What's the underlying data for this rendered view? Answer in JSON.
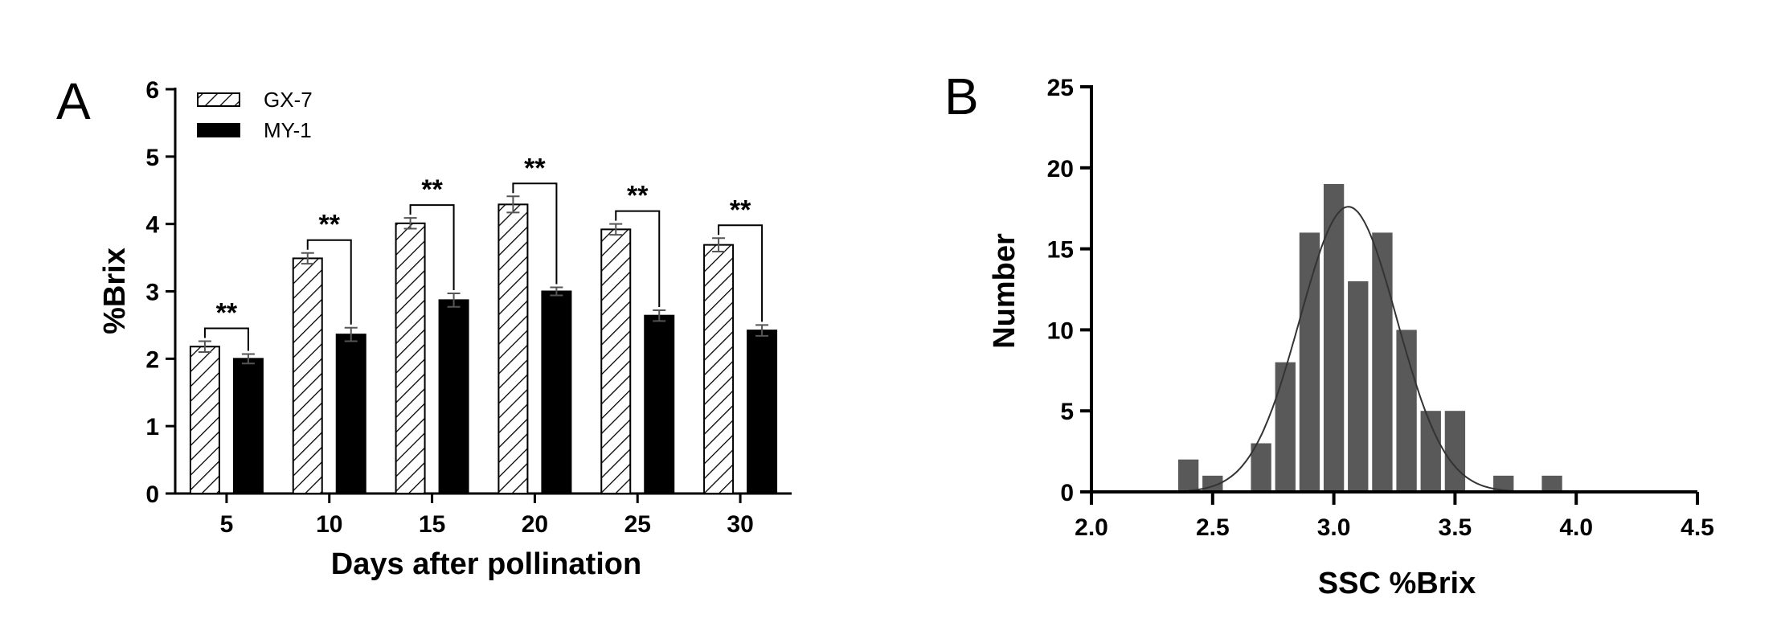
{
  "chart_data": [
    {
      "type": "bar",
      "panel_label": "A",
      "title": "",
      "xlabel": "Days after pollination",
      "ylabel": "%Brix",
      "categories": [
        "5",
        "10",
        "15",
        "20",
        "25",
        "30"
      ],
      "ylim": [
        0,
        6
      ],
      "yticks": [
        "0",
        "1",
        "2",
        "3",
        "4",
        "5",
        "6"
      ],
      "series": [
        {
          "name": "GX-7",
          "pattern": "hatched",
          "values": [
            2.18,
            3.49,
            4.01,
            4.29,
            3.92,
            3.69
          ],
          "errors": [
            0.08,
            0.08,
            0.08,
            0.12,
            0.08,
            0.1
          ]
        },
        {
          "name": "MY-1",
          "pattern": "solid",
          "color": "#000000",
          "values": [
            2.0,
            2.36,
            2.87,
            3.0,
            2.64,
            2.42
          ],
          "errors": [
            0.07,
            0.1,
            0.1,
            0.06,
            0.08,
            0.08
          ]
        }
      ],
      "significance": [
        "**",
        "**",
        "**",
        "**",
        "**",
        "**"
      ],
      "legend_position": "top-left",
      "grid": false
    },
    {
      "type": "bar",
      "subtype": "histogram",
      "panel_label": "B",
      "title": "",
      "xlabel": "SSC %Brix",
      "ylabel": "Number",
      "xlim": [
        2.0,
        4.5
      ],
      "ylim": [
        0,
        25
      ],
      "xticks": [
        "2.0",
        "2.5",
        "3.0",
        "3.5",
        "4.0",
        "4.5"
      ],
      "yticks": [
        "0",
        "5",
        "10",
        "15",
        "20",
        "25"
      ],
      "bin_width": 0.1,
      "bins": [
        {
          "x": 2.4,
          "count": 2
        },
        {
          "x": 2.5,
          "count": 1
        },
        {
          "x": 2.7,
          "count": 3
        },
        {
          "x": 2.8,
          "count": 8
        },
        {
          "x": 2.9,
          "count": 16
        },
        {
          "x": 3.0,
          "count": 19
        },
        {
          "x": 3.1,
          "count": 13
        },
        {
          "x": 3.2,
          "count": 16
        },
        {
          "x": 3.3,
          "count": 10
        },
        {
          "x": 3.4,
          "count": 5
        },
        {
          "x": 3.5,
          "count": 5
        },
        {
          "x": 3.7,
          "count": 1
        },
        {
          "x": 3.9,
          "count": 1
        }
      ],
      "fit_curve": {
        "type": "normal",
        "mean": 3.06,
        "sd": 0.2,
        "peak": 17.6,
        "range": [
          2.4,
          3.75
        ]
      },
      "bar_color": "#595959",
      "grid": false
    }
  ]
}
